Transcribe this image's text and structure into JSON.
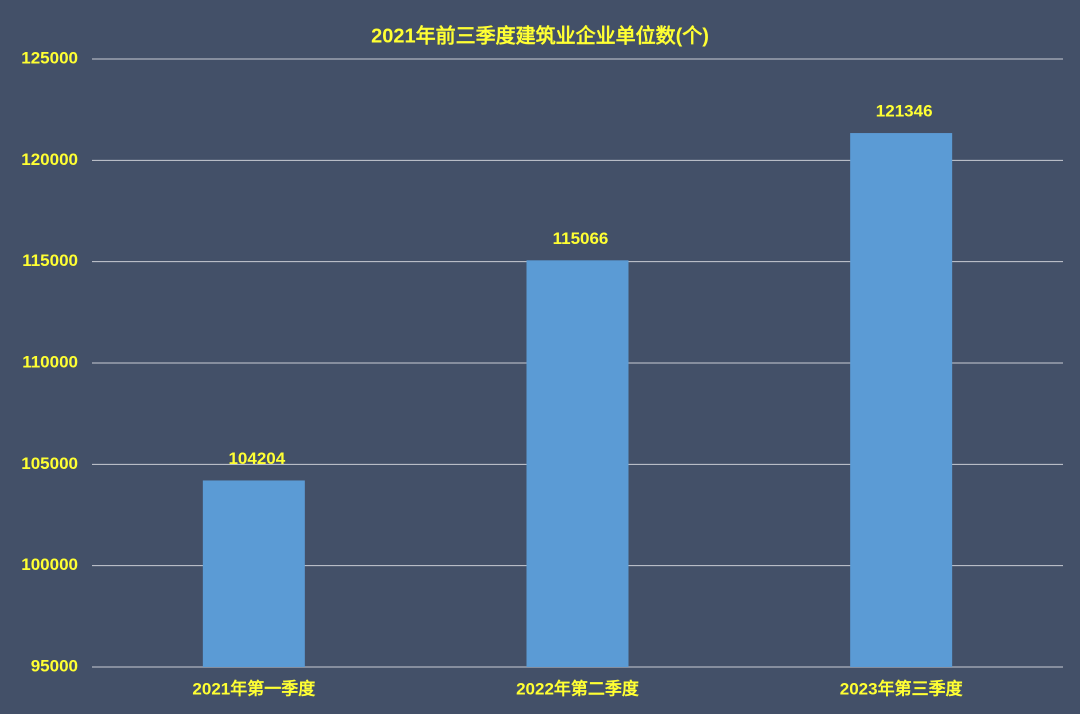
{
  "chart_data": {
    "type": "bar",
    "title": "2021年前三季度建筑业企业单位数(个)",
    "categories": [
      "2021年第一季度",
      "2022年第二季度",
      "2023年第三季度"
    ],
    "values": [
      104204,
      115066,
      121346
    ],
    "color": "#5b9bd5",
    "ylim": [
      95000,
      125000
    ],
    "yticks": [
      95000,
      100000,
      105000,
      110000,
      115000,
      120000,
      125000
    ],
    "grid": true
  }
}
